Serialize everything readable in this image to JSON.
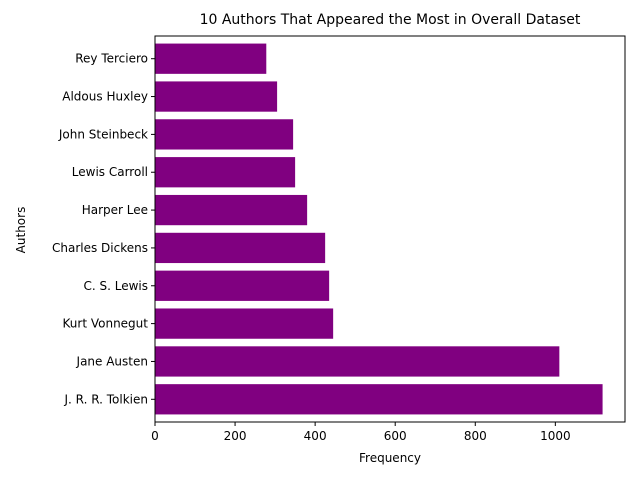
{
  "chart_data": {
    "type": "bar",
    "orientation": "horizontal",
    "title": "10 Authors That Appeared the Most in Overall Dataset",
    "xlabel": "Frequency",
    "ylabel": "Authors",
    "categories": [
      "J. R. R. Tolkien",
      "Jane Austen",
      "Kurt Vonnegut",
      "C. S. Lewis",
      "Charles Dickens",
      "Harper Lee",
      "Lewis Carroll",
      "John Steinbeck",
      "Aldous Huxley",
      "Rey Terciero"
    ],
    "values": [
      1118,
      1010,
      445,
      435,
      425,
      380,
      350,
      345,
      305,
      278
    ],
    "xlim": [
      0,
      1174
    ],
    "xticks": [
      0,
      200,
      400,
      600,
      800,
      1000
    ],
    "bar_color": "#800080",
    "grid": false
  }
}
